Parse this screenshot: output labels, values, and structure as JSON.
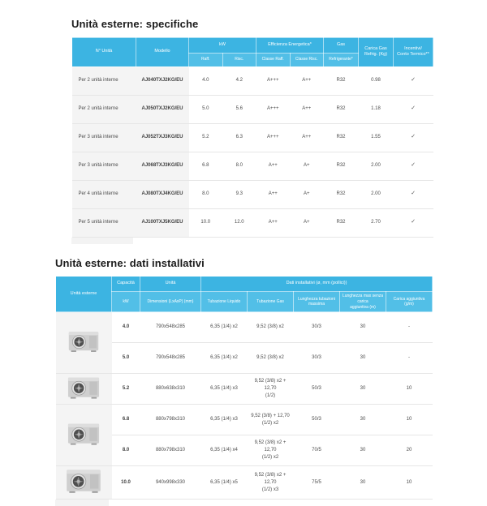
{
  "colors": {
    "header_blue": "#3cb4e2",
    "header_blue_light": "#52bfe7",
    "first_col_gray": "#f4f4f4",
    "text_dark": "#4a4a4a",
    "title_color": "#1b1b1b"
  },
  "section1": {
    "title": "Unità esterne: specifiche",
    "header": {
      "n_unita": "N° Unità",
      "modello": "Modello",
      "kw": "kW",
      "kw_raff": "Raff.",
      "kw_risc": "Risc.",
      "eff": "Efficienza Energetica*",
      "eff_raff": "Classe Raff.",
      "eff_risc": "Classe Risc.",
      "gas": "Gas",
      "gas_sub": "Refrigerante*",
      "carica": "Carica Gas\nRefrig. (Kg)",
      "incentivi": "Incentivi/\nConto Termico**"
    },
    "rows": [
      {
        "unita": "Per 2 unità interne",
        "modello": "AJ040TXJ2KG/EU",
        "raff": "4.0",
        "risc": "4.2",
        "classe_raff": "A+++",
        "classe_risc": "A++",
        "gas": "R32",
        "carica": "0.98",
        "incentivo": "✓"
      },
      {
        "unita": "Per 2 unità interne",
        "modello": "AJ050TXJ2KG/EU",
        "raff": "5.0",
        "risc": "5.6",
        "classe_raff": "A+++",
        "classe_risc": "A++",
        "gas": "R32",
        "carica": "1.18",
        "incentivo": "✓"
      },
      {
        "unita": "Per 3 unità interne",
        "modello": "AJ052TXJ3KG/EU",
        "raff": "5.2",
        "risc": "6.3",
        "classe_raff": "A+++",
        "classe_risc": "A++",
        "gas": "R32",
        "carica": "1.55",
        "incentivo": "✓"
      },
      {
        "unita": "Per 3 unità interne",
        "modello": "AJ068TXJ3KG/EU",
        "raff": "6.8",
        "risc": "8.0",
        "classe_raff": "A++",
        "classe_risc": "A+",
        "gas": "R32",
        "carica": "2.00",
        "incentivo": "✓"
      },
      {
        "unita": "Per 4 unità interne",
        "modello": "AJ080TXJ4KG/EU",
        "raff": "8.0",
        "risc": "9.3",
        "classe_raff": "A++",
        "classe_risc": "A+",
        "gas": "R32",
        "carica": "2.00",
        "incentivo": "✓"
      },
      {
        "unita": "Per 5 unità interne",
        "modello": "AJ100TXJ5KG/EU",
        "raff": "10.0",
        "risc": "12.0",
        "classe_raff": "A++",
        "classe_risc": "A+",
        "gas": "R32",
        "carica": "2.70",
        "incentivo": "✓"
      }
    ]
  },
  "section2": {
    "title": "Unità esterne: dati installativi",
    "header": {
      "unita_esterne": "Unità esterne",
      "capacita": "Capacità",
      "capacita_sub": "kW",
      "unita": "Unità",
      "unita_sub": "Dimensioni (LxAxP) (mm)",
      "dati": "Dati installativi (ø, mm (pollici))",
      "liquido": "Tubazione Liquido",
      "gas": "Tubazione Gas",
      "lunghezza": "Lunghezza tubazioni\nmassima",
      "lunghezza_max": "Lunghezza max senza carica\naggiuntiva (m)",
      "carica_agg": "Carica aggiuntiva\n(g/m)"
    },
    "rows": [
      {
        "kw": "4.0",
        "dim": "790x548x285",
        "liq": "6,35 (1/4) x2",
        "gas": "9,52 (3/8) x2",
        "lun": "30/3",
        "lmax": "30",
        "car": "-",
        "photo": {
          "rows": 2,
          "size": "s"
        }
      },
      {
        "kw": "5.0",
        "dim": "790x548x285",
        "liq": "6,35 (1/4) x2",
        "gas": "9,52 (3/8) x2",
        "lun": "30/3",
        "lmax": "30",
        "car": "-",
        "photo": null
      },
      {
        "kw": "5.2",
        "dim": "880x638x310",
        "liq": "6,35 (1/4) x3",
        "gas": "9,52 (3/8) x2 + 12,70\n(1/2)",
        "lun": "50/3",
        "lmax": "30",
        "car": "10",
        "photo": {
          "rows": 1,
          "size": "m"
        }
      },
      {
        "kw": "6.8",
        "dim": "880x798x310",
        "liq": "6,35 (1/4) x3",
        "gas": "9,52 (3/8) + 12,70\n(1/2) x2",
        "lun": "50/3",
        "lmax": "30",
        "car": "10",
        "photo": {
          "rows": 2,
          "size": "m"
        }
      },
      {
        "kw": "8.0",
        "dim": "880x798x310",
        "liq": "6,35 (1/4) x4",
        "gas": "9,52 (3/8) x2 + 12,70\n(1/2) x2",
        "lun": "70/5",
        "lmax": "30",
        "car": "20",
        "photo": null
      },
      {
        "kw": "10.0",
        "dim": "940x998x330",
        "liq": "6,35 (1/4) x5",
        "gas": "9,52 (3/8) x2 + 12,70\n(1/2) x3",
        "lun": "75/5",
        "lmax": "30",
        "car": "10",
        "photo": {
          "rows": 1,
          "size": "l"
        }
      }
    ]
  }
}
